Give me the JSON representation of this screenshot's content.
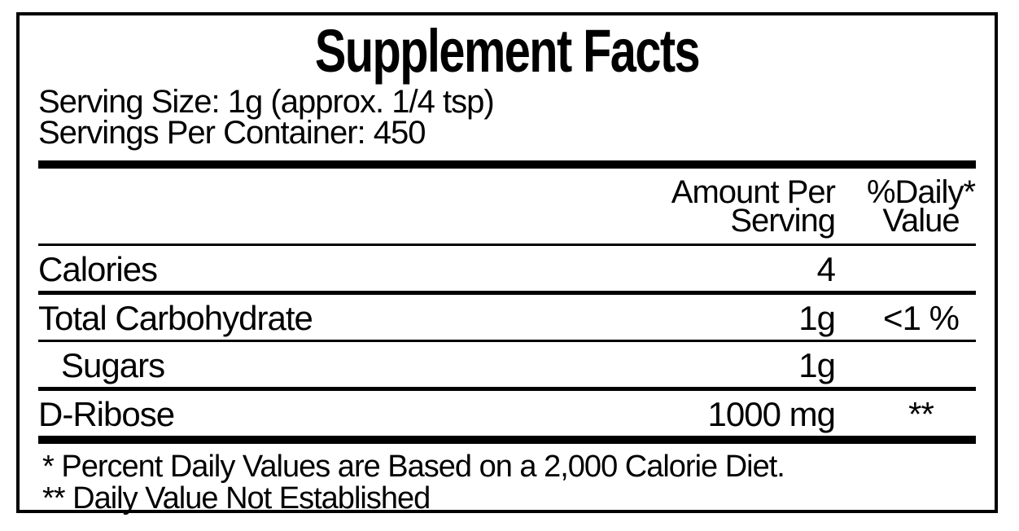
{
  "label": {
    "title": "Supplement Facts",
    "serving_size": "Serving Size: 1g (approx. 1/4 tsp)",
    "servings_per_container": "Servings Per Container: 450",
    "header": {
      "amount_line1": "Amount Per",
      "amount_line2": "Serving",
      "dv_line1": "%Daily*",
      "dv_line2": "Value"
    },
    "rows": [
      {
        "name": "Calories",
        "amount": "4",
        "dv": ""
      },
      {
        "name": "Total Carbohydrate",
        "amount": "1g",
        "dv": "<1 %"
      },
      {
        "name": "Sugars",
        "amount": "1g",
        "dv": ""
      },
      {
        "name": "D-Ribose",
        "amount": "1000 mg",
        "dv": "**"
      }
    ],
    "footnotes": {
      "daily_value_basis": "* Percent Daily Values are Based on a 2,000 Calorie Diet.",
      "not_established": "** Daily Value Not Established"
    },
    "colors": {
      "text": "#000000",
      "background": "#ffffff",
      "rule": "#000000"
    }
  }
}
